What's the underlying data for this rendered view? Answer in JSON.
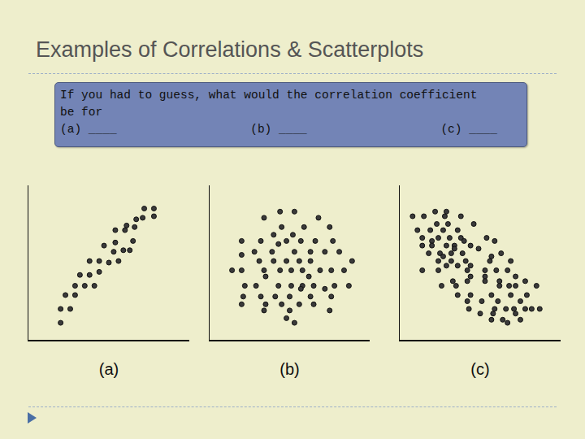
{
  "slide": {
    "title": "Examples of Correlations & Scatterplots",
    "question": {
      "lines": [
        "If you had to guess, what would the correlation coefficient",
        "be for"
      ],
      "blanks": [
        "(a) ____",
        "(b) ____",
        "(c) ____"
      ]
    }
  },
  "chart_data": [
    {
      "type": "scatter",
      "x_label": "(a)",
      "color": "#3a3a3a",
      "marker": "circle",
      "xlim": [
        0,
        100
      ],
      "ylim": [
        0,
        100
      ],
      "tick_labels": false,
      "grid": false,
      "x": [
        20,
        20,
        26,
        23,
        29,
        29,
        35,
        41,
        32,
        38,
        44,
        38,
        44,
        50,
        56,
        47,
        53,
        59,
        63,
        54,
        65,
        60,
        66,
        54,
        61,
        67,
        71,
        72,
        78,
        78
      ],
      "values": [
        11,
        20,
        20,
        29,
        29,
        35,
        35,
        35,
        42,
        42,
        44,
        51,
        51,
        50,
        51,
        61,
        57,
        58,
        58,
        63,
        64,
        71,
        73,
        71,
        74,
        78,
        79,
        85,
        85,
        80
      ]
    },
    {
      "type": "scatter",
      "x_label": "(b)",
      "color": "#3a3a3a",
      "marker": "circle",
      "xlim": [
        0,
        100
      ],
      "ylim": [
        0,
        100
      ],
      "tick_labels": false,
      "grid": false,
      "x": [
        44,
        53,
        34,
        68,
        45,
        59,
        75,
        40,
        52,
        20,
        32,
        48,
        57,
        66,
        77,
        43,
        28,
        39,
        53,
        63,
        72,
        81,
        20,
        40,
        48,
        56,
        63,
        89,
        31,
        14,
        20,
        34,
        44,
        51,
        58,
        69,
        76,
        84,
        35,
        62,
        22,
        29,
        43,
        51,
        58,
        65,
        78,
        87,
        57,
        72,
        21,
        32,
        41,
        50,
        63,
        76,
        20,
        35,
        45,
        56,
        65,
        34,
        50,
        75,
        48,
        53
      ],
      "values": [
        83,
        83,
        79,
        79,
        73,
        73,
        73,
        68,
        68,
        64,
        64,
        64,
        64,
        64,
        64,
        62,
        57,
        57,
        57,
        57,
        57,
        57,
        55,
        51,
        51,
        51,
        51,
        51,
        51,
        45,
        45,
        45,
        45,
        45,
        45,
        45,
        45,
        45,
        41,
        41,
        35,
        35,
        35,
        35,
        35,
        35,
        35,
        35,
        33,
        33,
        28,
        28,
        28,
        28,
        28,
        28,
        23,
        23,
        23,
        23,
        23,
        19,
        19,
        19,
        14,
        11
      ]
    },
    {
      "type": "scatter",
      "x_label": "(c)",
      "color": "#3a3a3a",
      "marker": "circle",
      "xlim": [
        0,
        100
      ],
      "ylim": [
        0,
        100
      ],
      "tick_labels": false,
      "grid": false,
      "x": [
        22,
        29,
        8,
        15,
        28,
        38,
        23,
        30,
        46,
        11,
        19,
        27,
        36,
        14,
        24,
        31,
        38,
        54,
        20,
        40,
        59,
        14,
        20,
        29,
        34,
        44,
        34,
        49,
        18,
        25,
        32,
        39,
        63,
        27,
        57,
        24,
        32,
        41,
        56,
        69,
        29,
        44,
        36,
        14,
        24,
        42,
        53,
        60,
        67,
        44,
        72,
        53,
        33,
        42,
        62,
        53,
        78,
        26,
        35,
        62,
        72,
        85,
        68,
        36,
        44,
        57,
        69,
        79,
        42,
        51,
        61,
        75,
        43,
        59,
        66,
        71,
        78,
        82,
        87,
        50,
        58,
        72,
        57,
        64,
        75,
        67
      ],
      "values": [
        83,
        83,
        80,
        80,
        80,
        80,
        75,
        75,
        75,
        71,
        71,
        71,
        71,
        66,
        66,
        66,
        66,
        66,
        64,
        64,
        64,
        61,
        61,
        61,
        61,
        61,
        59,
        59,
        56,
        56,
        56,
        56,
        56,
        54,
        54,
        51,
        51,
        51,
        51,
        51,
        48,
        48,
        48,
        45,
        45,
        45,
        45,
        45,
        45,
        41,
        41,
        41,
        38,
        38,
        38,
        38,
        38,
        35,
        35,
        35,
        35,
        35,
        35,
        29,
        29,
        29,
        29,
        29,
        25,
        25,
        25,
        25,
        20,
        20,
        20,
        20,
        20,
        20,
        20,
        17,
        17,
        17,
        13,
        13,
        13,
        11
      ]
    }
  ]
}
